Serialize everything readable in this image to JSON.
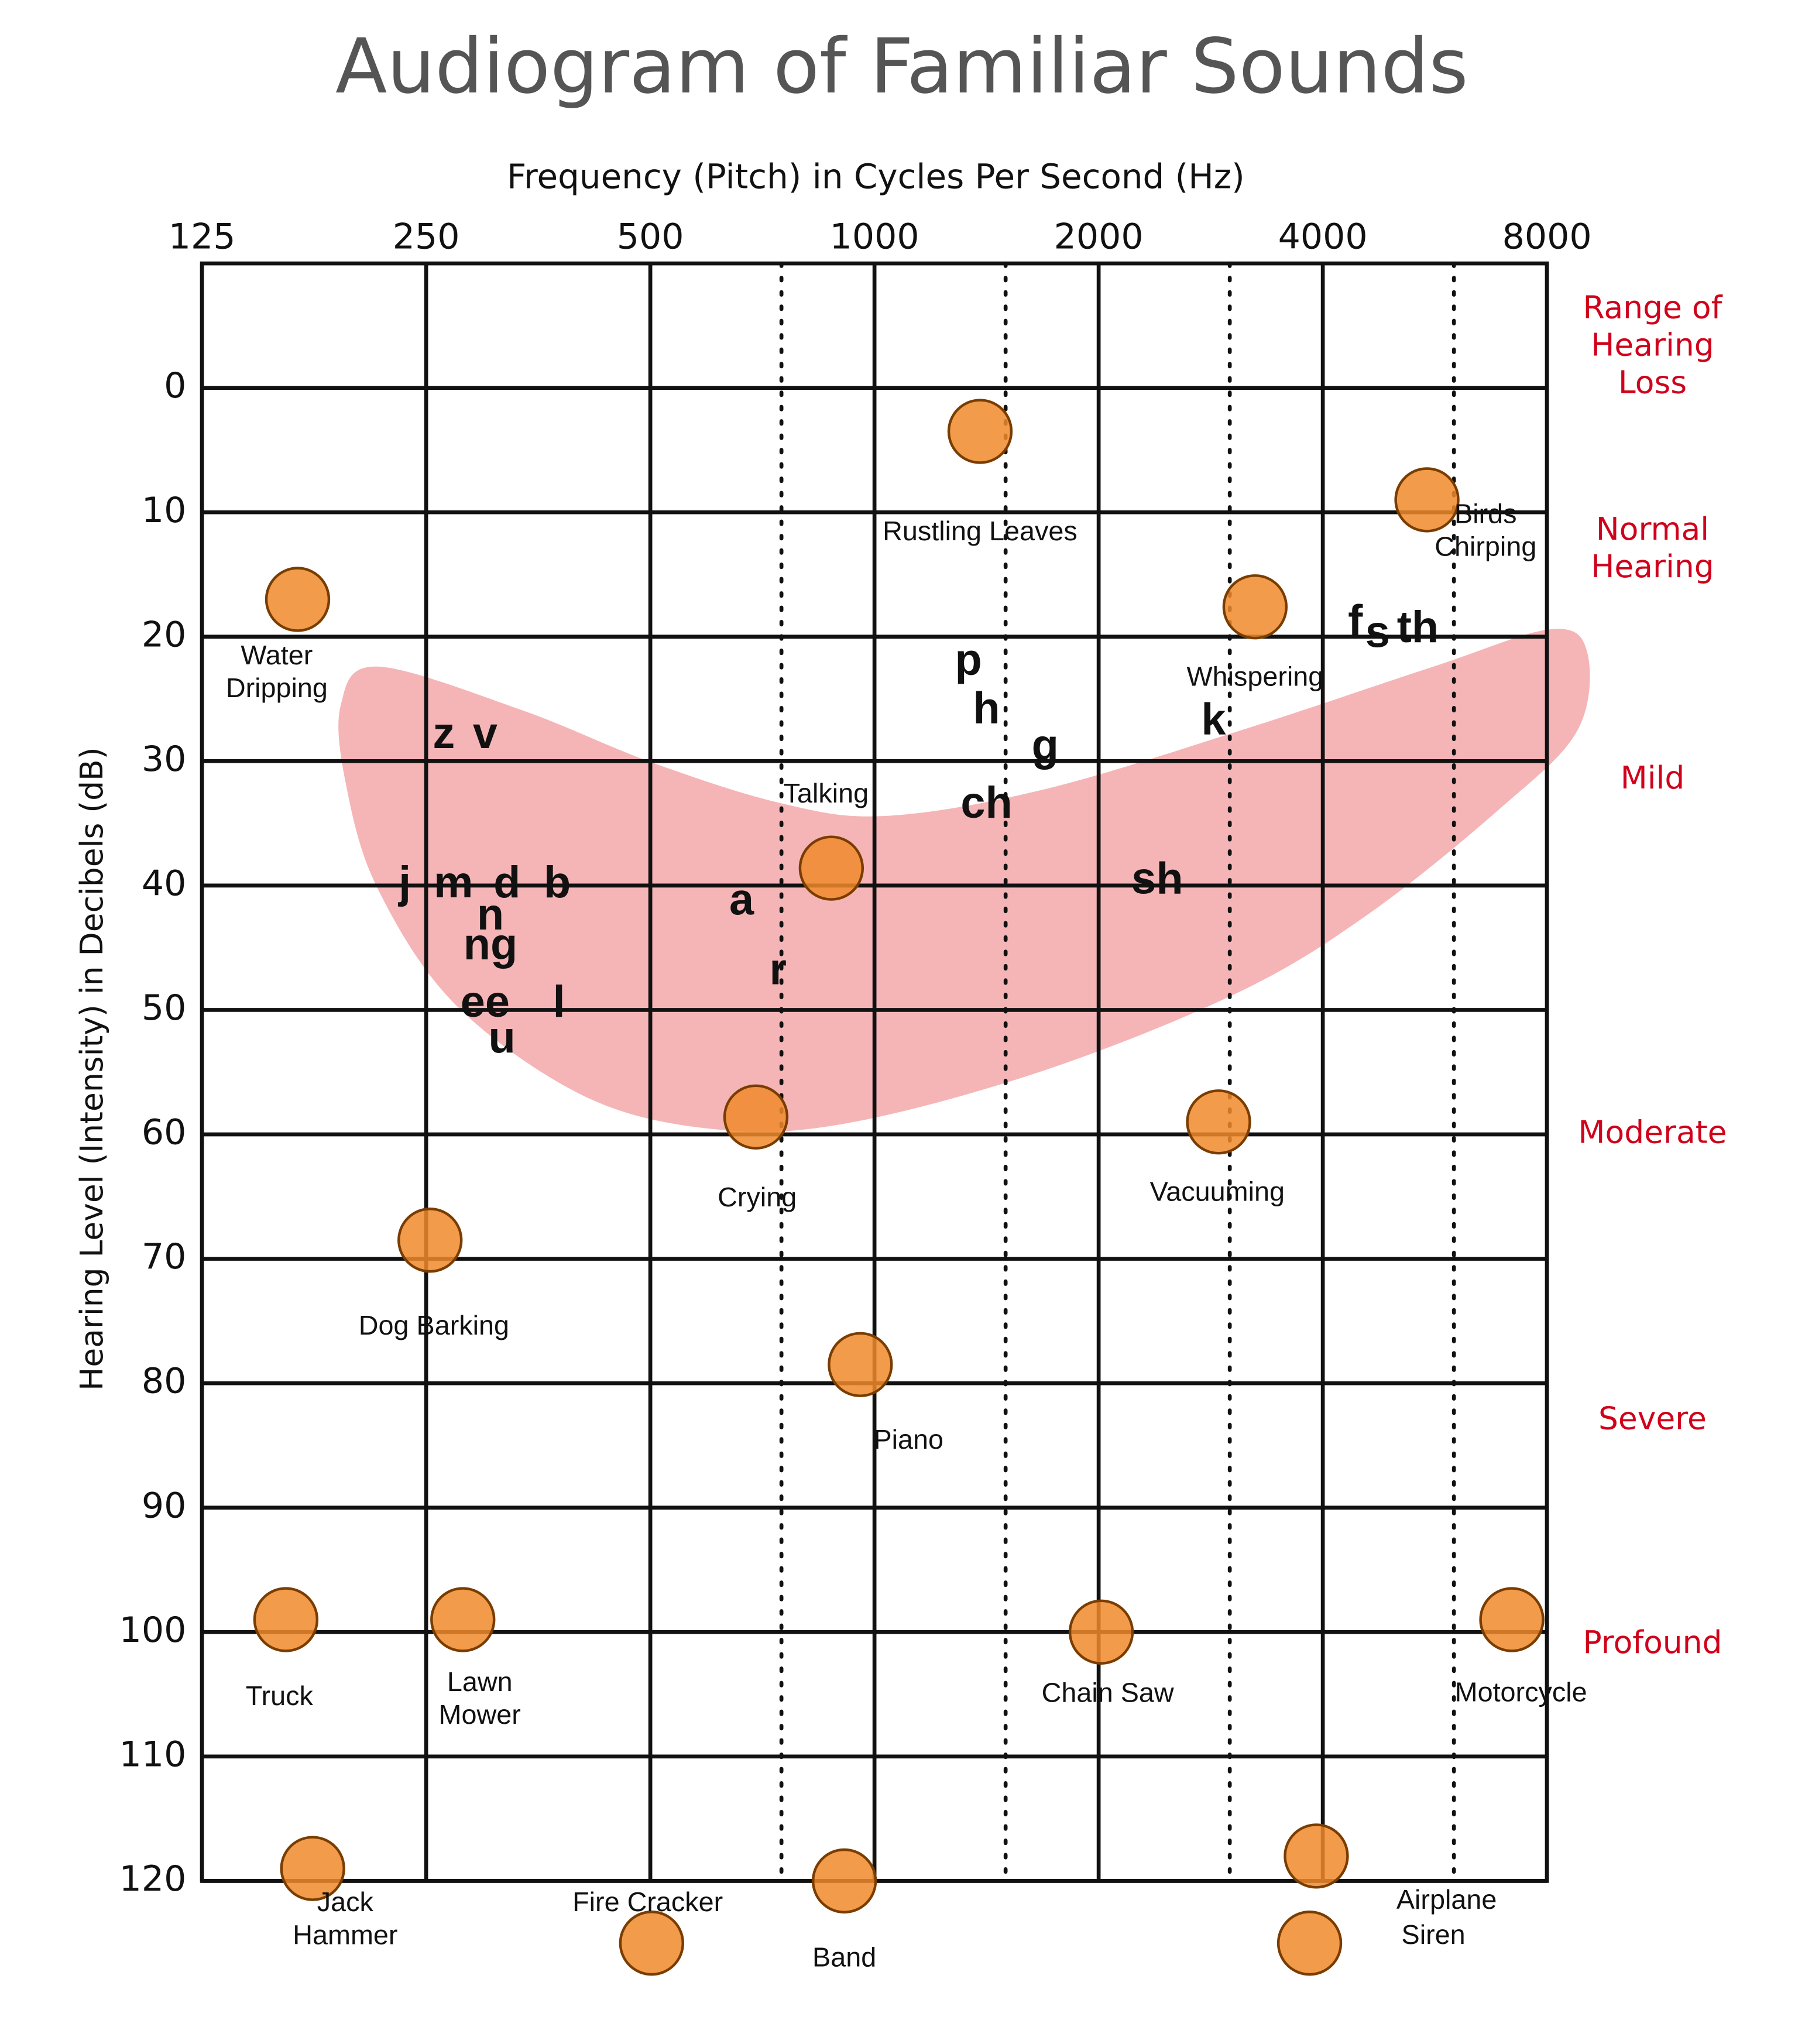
{
  "chart_data": {
    "type": "scatter",
    "title": "Audiogram of Familiar Sounds",
    "x_label": "Frequency (Pitch) in Cycles Per Second (Hz)",
    "y_label": "Hearing Level (Intensity) in Decibels (dB)",
    "x_scale": "log2",
    "xlim": [
      125,
      8000
    ],
    "xticks": [
      125,
      250,
      500,
      1000,
      2000,
      4000,
      8000
    ],
    "x_dotted_lines": [
      750,
      1500,
      3000,
      6000
    ],
    "ylim": [
      -10,
      120
    ],
    "y_inverted": true,
    "yticks": [
      0,
      10,
      20,
      30,
      40,
      50,
      60,
      70,
      80,
      90,
      100,
      110,
      120
    ],
    "grid": true,
    "speech_banana": {
      "color": "#f5b5b7",
      "x": [
        215,
        336,
        502,
        751,
        1037,
        1682,
        3078,
        5634,
        8099,
        9065,
        8779,
        6893,
        4604,
        3078,
        1682,
        919,
        614,
        410,
        274,
        215,
        195,
        192
      ],
      "y": [
        22.4,
        25.9,
        30.1,
        33.4,
        34.4,
        32.3,
        27.6,
        22.4,
        19.4,
        21.3,
        27.6,
        33.9,
        42.3,
        48.6,
        54.9,
        59.1,
        59.6,
        57,
        49.6,
        40.2,
        31.8,
        25.5
      ]
    },
    "speech_sounds": {
      "color": "#111111",
      "labels": [
        "z",
        "v",
        "j",
        "m",
        "d",
        "b",
        "n",
        "ng",
        "ee",
        "l",
        "u",
        "a",
        "r",
        "p",
        "h",
        "g",
        "ch",
        "k",
        "sh",
        "f",
        "s",
        "th"
      ],
      "x": [
        264,
        300,
        234,
        272,
        321,
        375,
        305,
        305,
        300,
        377,
        316,
        663,
        742,
        1337,
        1414,
        1695,
        1414,
        2853,
        2398,
        4424,
        4739,
        5366
      ],
      "y": [
        28,
        28,
        40,
        40,
        40,
        40,
        42.6,
        45,
        49.6,
        49.6,
        52.5,
        41.4,
        47,
        22.1,
        26,
        29,
        33.6,
        26.9,
        39.7,
        19,
        19.9,
        19.5
      ]
    },
    "familiar_sounds": {
      "color": "#f08a2c",
      "labels": [
        "Rustling Leaves",
        "Birds Chirping",
        "Water Dripping",
        "Whispering",
        "Talking",
        "Crying",
        "Vacuuming",
        "Dog Barking",
        "Piano",
        "Truck",
        "Lawn Mower",
        "Chain Saw",
        "Motorcycle",
        "Jack Hammer",
        "Fire Cracker",
        "Band",
        "Airplane",
        "Siren"
      ],
      "x": [
        1386,
        5520,
        168,
        3244,
        875,
        693,
        2898,
        253,
        957,
        162,
        280,
        2016,
        7176,
        176,
        502,
        911,
        3920,
        3840
      ],
      "y": [
        3.5,
        9,
        17,
        17.6,
        38.6,
        58.6,
        59,
        68.5,
        78.5,
        99,
        99,
        100,
        99,
        119,
        125,
        120,
        118,
        125
      ]
    },
    "severity": {
      "header": "Range of Hearing Loss",
      "color": "#d0021b",
      "labels": [
        "Normal Hearing",
        "Mild",
        "Moderate",
        "Severe",
        "Profound"
      ],
      "y": [
        13,
        31.5,
        60,
        83,
        101
      ]
    }
  }
}
